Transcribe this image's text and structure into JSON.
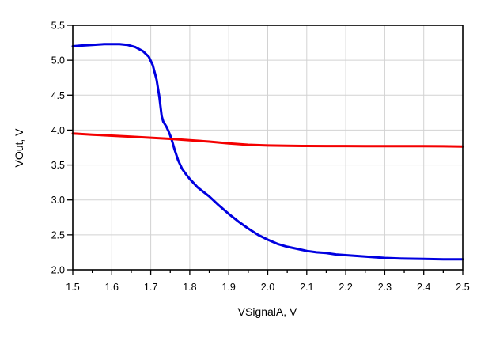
{
  "chart_data": {
    "type": "line",
    "title": "",
    "xlabel": "VSignalA, V",
    "ylabel": "VOut, V",
    "xlim": [
      1.5,
      2.5
    ],
    "ylim": [
      2.0,
      5.5
    ],
    "x_tick_labels": [
      "1.5",
      "1.6",
      "1.7",
      "1.8",
      "1.9",
      "2.0",
      "2.1",
      "2.2",
      "2.3",
      "2.4",
      "2.5"
    ],
    "y_tick_labels": [
      "2.0",
      "2.5",
      "3.0",
      "3.5",
      "4.0",
      "4.5",
      "5.0",
      "5.5"
    ],
    "x_major_step": 0.1,
    "x_minor_step": 0.05,
    "y_major_step": 0.5,
    "grid": true,
    "legend_position": "none",
    "colors": {
      "background": "#ffffff",
      "axis": "#000000",
      "grid": "#d2d2d2",
      "tick_text": "#000000"
    },
    "series": [
      {
        "id": "blue-trace",
        "color": "#0000e0",
        "stroke_width": 3,
        "points": [
          [
            1.5,
            5.2
          ],
          [
            1.52,
            5.21
          ],
          [
            1.55,
            5.22
          ],
          [
            1.58,
            5.23
          ],
          [
            1.6,
            5.23
          ],
          [
            1.62,
            5.23
          ],
          [
            1.64,
            5.22
          ],
          [
            1.66,
            5.19
          ],
          [
            1.68,
            5.13
          ],
          [
            1.695,
            5.05
          ],
          [
            1.705,
            4.93
          ],
          [
            1.715,
            4.72
          ],
          [
            1.722,
            4.48
          ],
          [
            1.728,
            4.2
          ],
          [
            1.732,
            4.12
          ],
          [
            1.74,
            4.05
          ],
          [
            1.745,
            3.99
          ],
          [
            1.75,
            3.92
          ],
          [
            1.755,
            3.84
          ],
          [
            1.76,
            3.74
          ],
          [
            1.77,
            3.57
          ],
          [
            1.78,
            3.45
          ],
          [
            1.79,
            3.37
          ],
          [
            1.8,
            3.3
          ],
          [
            1.82,
            3.18
          ],
          [
            1.85,
            3.05
          ],
          [
            1.875,
            2.92
          ],
          [
            1.9,
            2.8
          ],
          [
            1.925,
            2.69
          ],
          [
            1.95,
            2.59
          ],
          [
            1.975,
            2.5
          ],
          [
            2.0,
            2.43
          ],
          [
            2.025,
            2.37
          ],
          [
            2.05,
            2.33
          ],
          [
            2.075,
            2.3
          ],
          [
            2.1,
            2.27
          ],
          [
            2.125,
            2.25
          ],
          [
            2.15,
            2.24
          ],
          [
            2.175,
            2.22
          ],
          [
            2.2,
            2.21
          ],
          [
            2.25,
            2.19
          ],
          [
            2.3,
            2.17
          ],
          [
            2.35,
            2.16
          ],
          [
            2.4,
            2.155
          ],
          [
            2.45,
            2.15
          ],
          [
            2.5,
            2.15
          ]
        ]
      },
      {
        "id": "red-trace",
        "color": "#f40000",
        "stroke_width": 3,
        "points": [
          [
            1.5,
            3.95
          ],
          [
            1.55,
            3.935
          ],
          [
            1.6,
            3.92
          ],
          [
            1.65,
            3.905
          ],
          [
            1.7,
            3.89
          ],
          [
            1.75,
            3.875
          ],
          [
            1.8,
            3.855
          ],
          [
            1.85,
            3.835
          ],
          [
            1.9,
            3.81
          ],
          [
            1.95,
            3.79
          ],
          [
            2.0,
            3.78
          ],
          [
            2.05,
            3.775
          ],
          [
            2.1,
            3.773
          ],
          [
            2.15,
            3.772
          ],
          [
            2.2,
            3.771
          ],
          [
            2.25,
            3.77
          ],
          [
            2.3,
            3.77
          ],
          [
            2.35,
            3.77
          ],
          [
            2.4,
            3.769
          ],
          [
            2.45,
            3.768
          ],
          [
            2.5,
            3.765
          ]
        ]
      }
    ]
  }
}
